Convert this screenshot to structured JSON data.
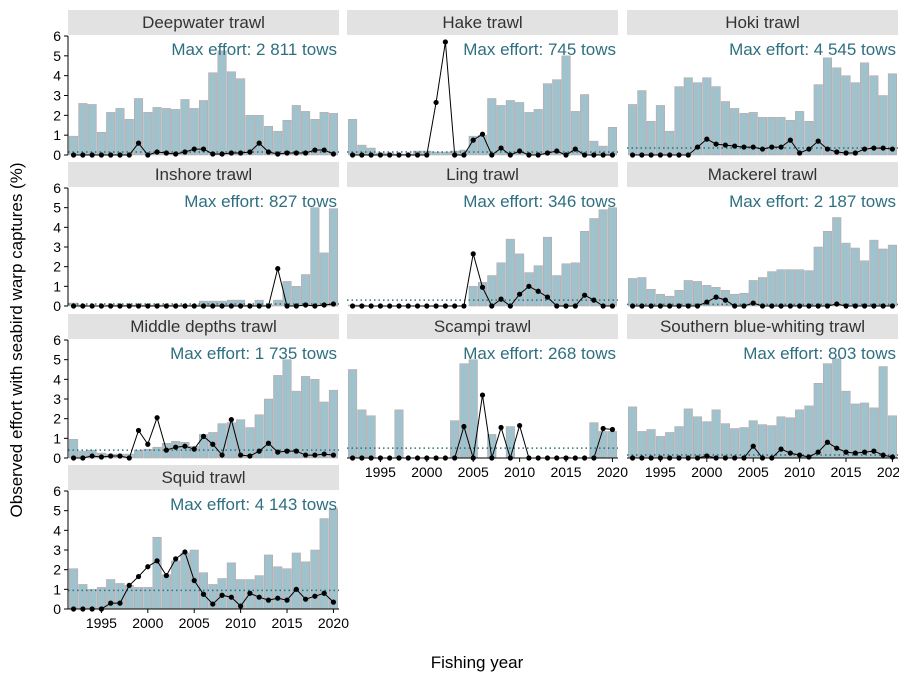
{
  "chart_data": {
    "type": "bar",
    "description_axis": {
      "xlabel": "Fishing year",
      "ylabel": "Observed effort with seabird warp captures (%)"
    },
    "x": [
      1992,
      1993,
      1994,
      1995,
      1996,
      1997,
      1998,
      1999,
      2000,
      2001,
      2002,
      2003,
      2004,
      2005,
      2006,
      2007,
      2008,
      2009,
      2010,
      2011,
      2012,
      2013,
      2014,
      2015,
      2016,
      2017,
      2018,
      2019,
      2020
    ],
    "ylim": [
      0,
      6
    ],
    "yticks": [
      0,
      1,
      2,
      3,
      4,
      5,
      6
    ],
    "xticks": [
      1995,
      2000,
      2005,
      2010,
      2015,
      2020
    ],
    "colors": {
      "bar": "#9fc2cc",
      "bar_stroke": "#c0a0a0",
      "line": "#000000",
      "reference": "#2e7080",
      "effort_text": "#2e6f80",
      "strip_bg": "#e2e2e2",
      "strip_text": "#333333"
    },
    "panels": [
      {
        "title": "Deepwater trawl",
        "effort_label": "Max effort: 2 811 tows",
        "effort": [
          0.95,
          2.6,
          2.55,
          1.15,
          2.15,
          2.35,
          1.8,
          2.85,
          2.15,
          2.4,
          2.35,
          2.3,
          2.8,
          2.35,
          2.75,
          4.15,
          5.25,
          4.2,
          3.85,
          2.0,
          2.0,
          1.45,
          1.2,
          1.75,
          2.5,
          2.2,
          1.8,
          2.15,
          2.1
        ],
        "captures": [
          0,
          0,
          0,
          0,
          0,
          0,
          0,
          0.6,
          0,
          0.15,
          0.1,
          0.05,
          0.15,
          0.3,
          0.3,
          0.05,
          0.05,
          0.1,
          0.1,
          0.15,
          0.6,
          0.15,
          0.05,
          0.1,
          0.1,
          0.1,
          0.25,
          0.25,
          0.05
        ],
        "reference": 0.15
      },
      {
        "title": "Hake trawl",
        "effort_label": "Max effort: 745 tows",
        "effort": [
          1.8,
          0.5,
          0.35,
          0.1,
          0.1,
          0.05,
          0.05,
          0.2,
          0.2,
          0.15,
          0.15,
          0.2,
          0.25,
          0.95,
          1.0,
          2.85,
          2.5,
          2.75,
          2.65,
          2.15,
          2.3,
          3.6,
          3.8,
          5.0,
          2.2,
          3.05,
          0.7,
          0.45,
          1.4
        ],
        "captures": [
          0,
          0,
          0,
          0,
          0,
          0,
          0,
          0,
          0,
          2.65,
          5.7,
          0,
          0,
          0.75,
          1.05,
          0,
          0.35,
          0,
          0.2,
          0,
          0,
          0.1,
          0.2,
          0,
          0.3,
          0,
          0,
          0,
          0
        ],
        "reference": 0.15
      },
      {
        "title": "Hoki trawl",
        "effort_label": "Max effort: 4 545 tows",
        "effort": [
          2.55,
          3.25,
          1.7,
          2.5,
          1.2,
          3.45,
          3.9,
          3.65,
          3.9,
          3.45,
          2.7,
          2.35,
          2.1,
          2.15,
          1.9,
          1.9,
          1.9,
          1.75,
          2.2,
          1.7,
          3.55,
          4.9,
          4.4,
          4.0,
          3.65,
          4.65,
          4.0,
          3.0,
          4.1
        ],
        "captures": [
          0,
          0,
          0,
          0,
          0,
          0,
          0,
          0.4,
          0.8,
          0.55,
          0.5,
          0.45,
          0.4,
          0.4,
          0.3,
          0.4,
          0.4,
          0.75,
          0.1,
          0.3,
          0.7,
          0.3,
          0.15,
          0.1,
          0.1,
          0.3,
          0.35,
          0.35,
          0.3
        ],
        "reference": 0.35
      },
      {
        "title": "Inshore trawl",
        "effort_label": "Max effort: 827 tows",
        "effort": [
          0.15,
          0.05,
          0,
          0,
          0.05,
          0.05,
          0.05,
          0.05,
          0.05,
          0.05,
          0.05,
          0.05,
          0.05,
          0.05,
          0.25,
          0.25,
          0.25,
          0.3,
          0.3,
          0.05,
          0.3,
          0.05,
          0.3,
          1.25,
          1.0,
          1.6,
          5.0,
          2.7,
          4.95
        ],
        "captures": [
          0,
          0,
          0,
          0,
          0,
          0,
          0,
          0,
          0,
          0,
          0,
          0,
          0,
          0,
          0,
          0,
          0,
          0,
          0,
          0,
          0,
          0,
          1.9,
          0,
          0,
          0.05,
          0,
          0.05,
          0.1
        ],
        "reference": 0.1
      },
      {
        "title": "Ling trawl",
        "effort_label": "Max effort: 346 tows",
        "effort": [
          0.05,
          0.05,
          0,
          0,
          0,
          0,
          0,
          0,
          0,
          0,
          0,
          0,
          0,
          1.0,
          1.2,
          1.55,
          2.2,
          3.4,
          2.65,
          1.7,
          2.05,
          3.5,
          1.55,
          2.15,
          2.2,
          3.8,
          4.45,
          4.9,
          5.0
        ],
        "captures": [
          0,
          0,
          0,
          0,
          0,
          0,
          0,
          0,
          0,
          0,
          0,
          0,
          0,
          2.65,
          0.95,
          0,
          0.35,
          0,
          0.6,
          1.0,
          0.75,
          0.45,
          0,
          0,
          0,
          0.55,
          0.3,
          0,
          0
        ],
        "reference": 0.3
      },
      {
        "title": "Mackerel trawl",
        "effort_label": "Max effort: 2 187 tows",
        "effort": [
          1.4,
          1.45,
          0.85,
          0.6,
          0.5,
          0.8,
          1.3,
          1.25,
          1.05,
          0.95,
          0.8,
          0.6,
          0.65,
          1.3,
          1.45,
          1.75,
          1.85,
          1.85,
          1.85,
          1.8,
          3.0,
          3.8,
          4.5,
          3.2,
          2.95,
          2.3,
          3.35,
          2.9,
          3.1
        ],
        "captures": [
          0,
          0,
          0,
          0,
          0,
          0,
          0,
          0,
          0.2,
          0.45,
          0.3,
          0,
          0,
          0.15,
          0,
          0,
          0,
          0,
          0,
          0,
          0,
          0,
          0.1,
          0,
          0,
          0,
          0,
          0,
          0
        ],
        "reference": 0.08
      },
      {
        "title": "Middle depths trawl",
        "effort_label": "Max effort: 1 735 tows",
        "effort": [
          0.95,
          0.35,
          0.4,
          0.25,
          0.2,
          0.2,
          0.2,
          0.4,
          0.45,
          0.55,
          0.75,
          0.85,
          0.8,
          0.6,
          1.2,
          1.3,
          1.75,
          1.8,
          1.95,
          1.55,
          2.2,
          3.0,
          4.2,
          5.0,
          3.4,
          4.15,
          4.0,
          2.85,
          3.45
        ],
        "captures": [
          0,
          0,
          0.1,
          0.05,
          0.1,
          0.1,
          0,
          1.4,
          0.7,
          2.05,
          0.4,
          0.55,
          0.6,
          0.45,
          1.1,
          0.7,
          0.15,
          1.95,
          0.15,
          0.1,
          0.35,
          0.75,
          0.3,
          0.35,
          0.35,
          0.15,
          0.15,
          0.2,
          0.15
        ],
        "reference": 0.4
      },
      {
        "title": "Scampi trawl",
        "effort_label": "Max effort: 268 tows",
        "effort": [
          4.5,
          2.45,
          2.15,
          0,
          0,
          2.45,
          0,
          0,
          0,
          0,
          0,
          1.9,
          4.8,
          5.0,
          0,
          1.2,
          0,
          1.6,
          0,
          0,
          0,
          0,
          0,
          0.05,
          0,
          0,
          1.8,
          1.35,
          1.35
        ],
        "captures": [
          0,
          0,
          0,
          0,
          0,
          0,
          0,
          0,
          0,
          0,
          0,
          0,
          1.6,
          0,
          3.2,
          0,
          1.55,
          0,
          1.65,
          0,
          0,
          0,
          0,
          0,
          0,
          0,
          0,
          1.5,
          1.45
        ],
        "reference": 0.5
      },
      {
        "title": "Southern blue-whiting trawl",
        "effort_label": "Max effort: 803 tows",
        "effort": [
          2.6,
          1.35,
          1.45,
          1.1,
          1.3,
          1.6,
          2.5,
          2.1,
          1.85,
          2.45,
          1.75,
          1.5,
          1.55,
          1.9,
          1.7,
          1.65,
          2.1,
          2.05,
          2.45,
          2.65,
          3.8,
          4.8,
          5.05,
          3.4,
          2.75,
          2.8,
          2.55,
          4.65,
          2.15
        ],
        "captures": [
          0,
          0,
          0,
          0,
          0,
          0,
          0,
          0,
          0.1,
          0,
          0,
          0,
          0,
          0.6,
          0,
          0,
          0.45,
          0.25,
          0.15,
          0.05,
          0.3,
          0.8,
          0.5,
          0.3,
          0.25,
          0.3,
          0.35,
          0.15,
          0.05
        ],
        "reference": 0.15
      },
      {
        "title": "Squid trawl",
        "effort_label": "Max effort: 4 143 tows",
        "effort": [
          2.05,
          1.25,
          1.0,
          1.1,
          1.5,
          1.3,
          1.2,
          1.1,
          1.1,
          3.65,
          1.75,
          2.45,
          2.85,
          3.0,
          1.85,
          1.25,
          1.55,
          2.35,
          1.5,
          1.5,
          1.7,
          2.75,
          2.15,
          2.05,
          2.85,
          2.4,
          3.0,
          4.6,
          5.1
        ],
        "captures": [
          0,
          0,
          0,
          0,
          0.3,
          0.3,
          1.2,
          1.65,
          2.15,
          2.45,
          1.7,
          2.55,
          2.9,
          1.45,
          0.75,
          0.25,
          0.7,
          0.6,
          0.15,
          0.8,
          0.6,
          0.45,
          0.55,
          0.45,
          1.0,
          0.5,
          0.65,
          0.8,
          0.35
        ],
        "reference": 0.95
      }
    ]
  }
}
